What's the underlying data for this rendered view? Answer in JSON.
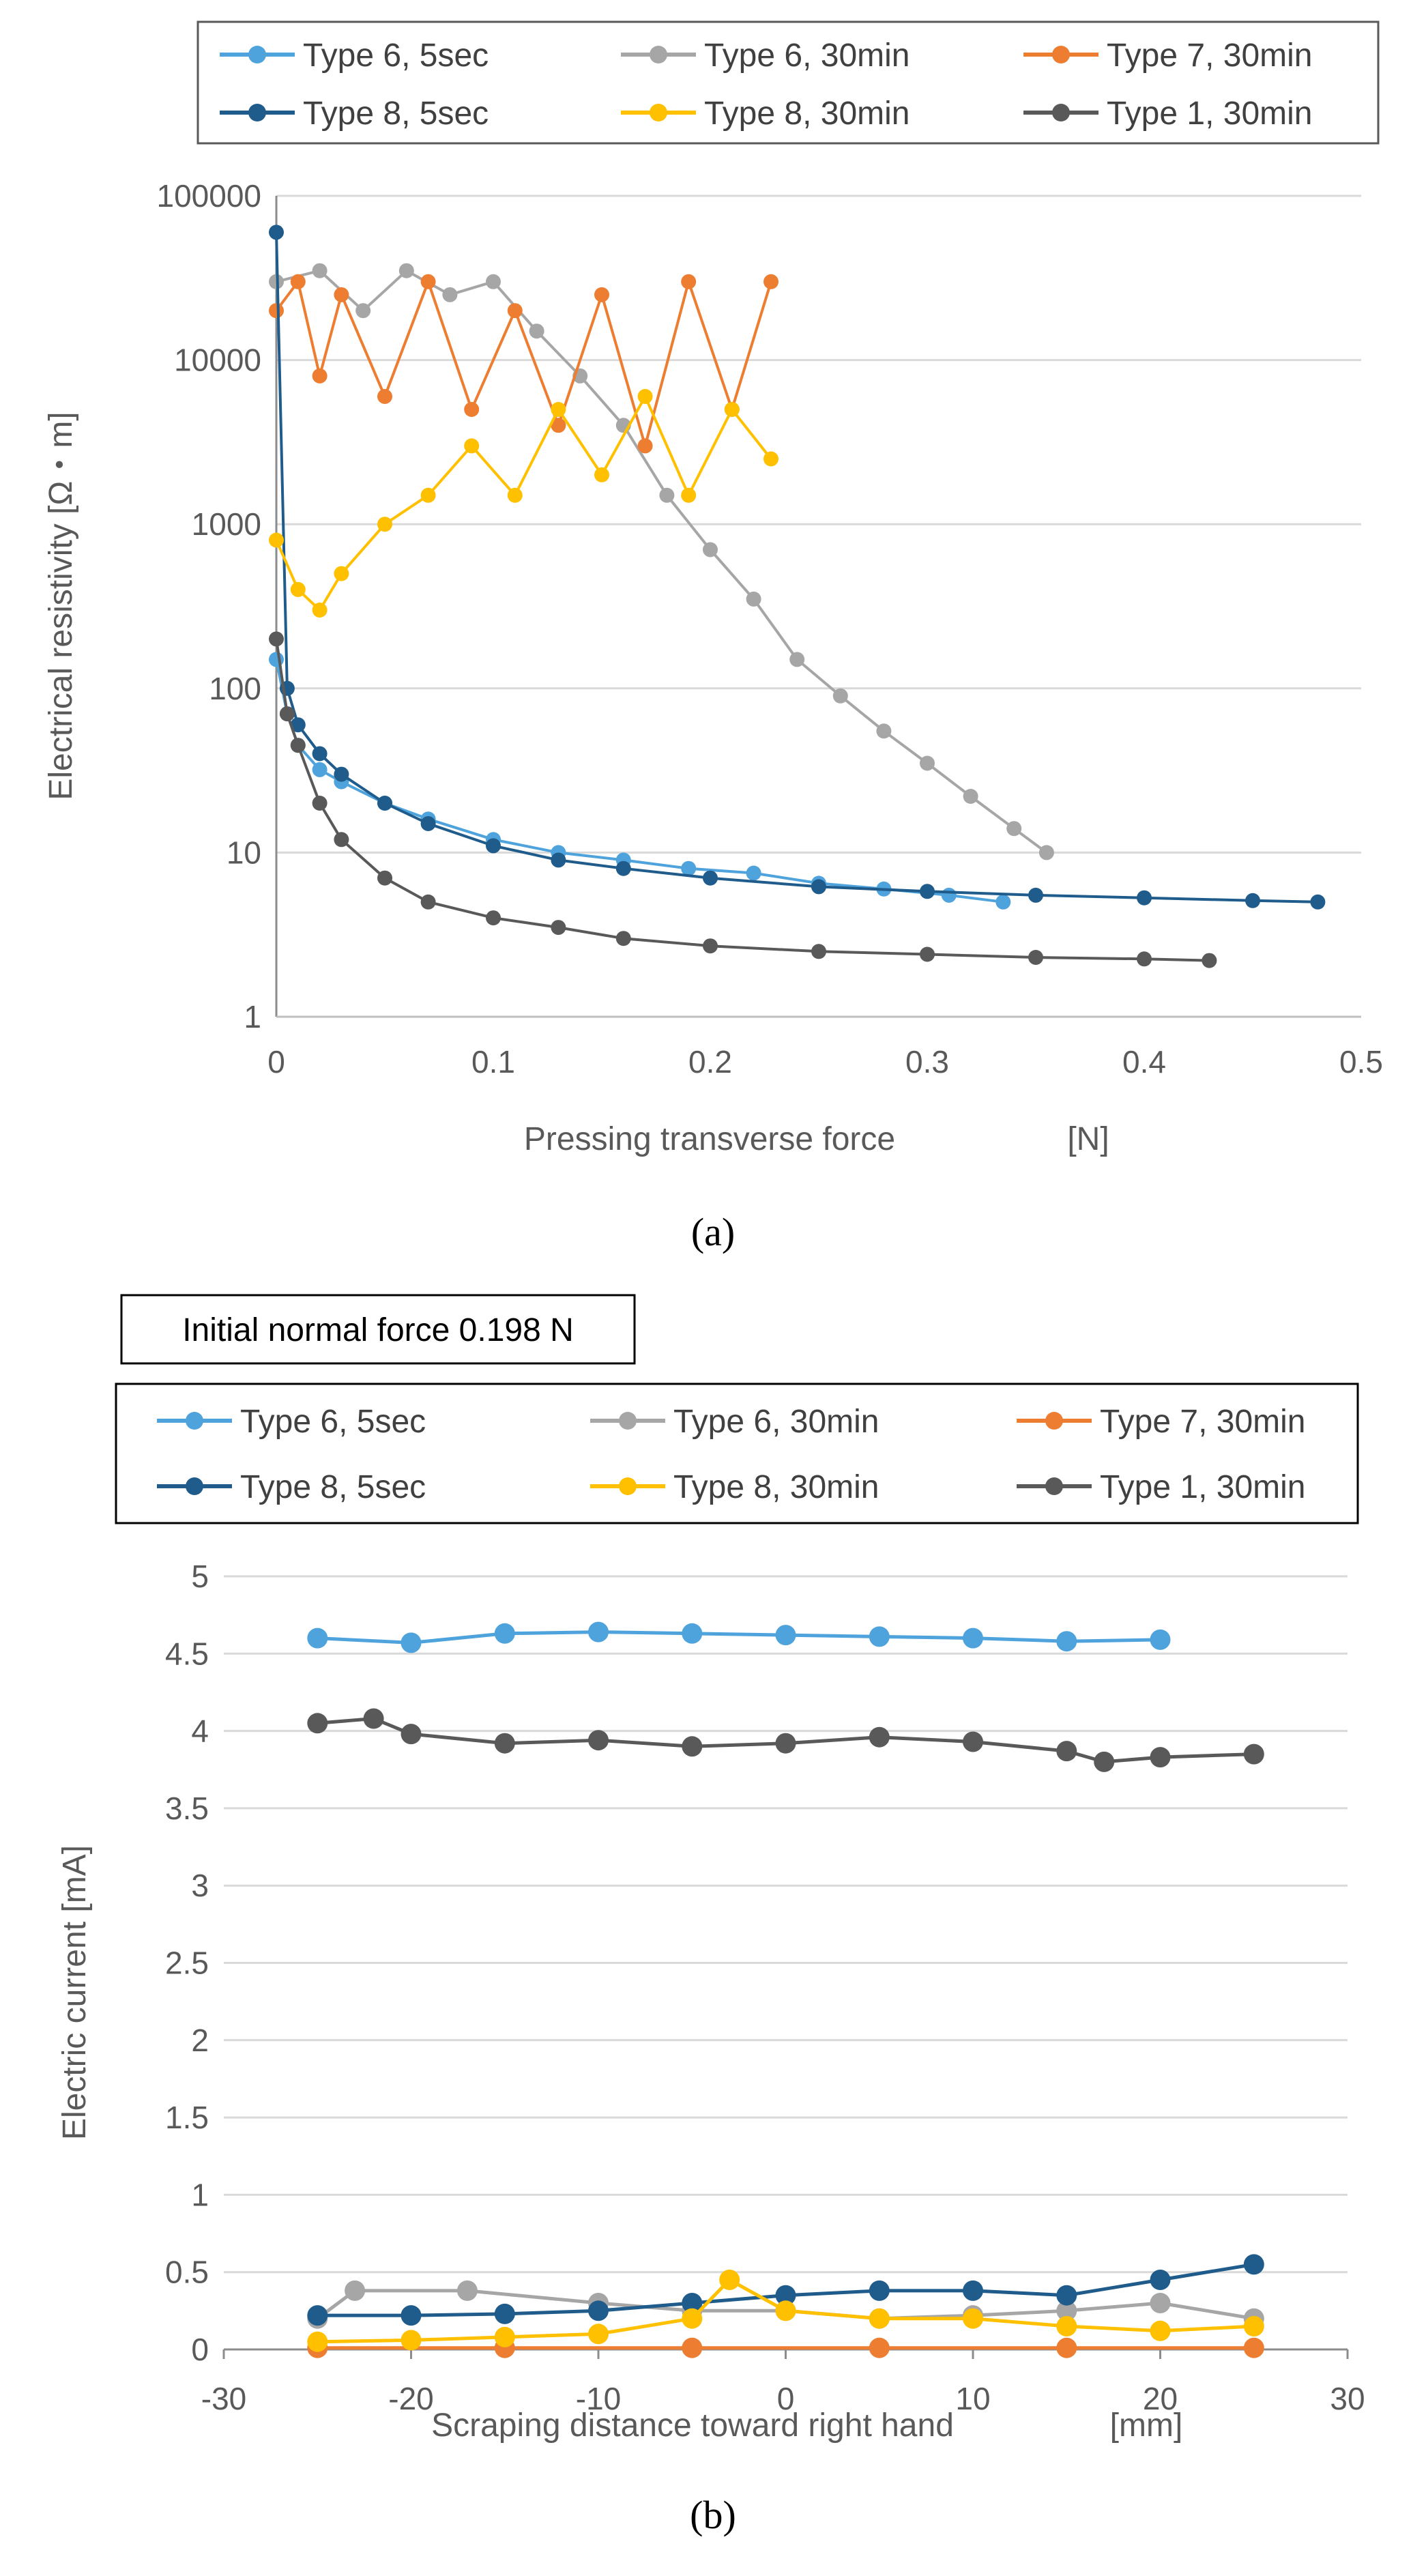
{
  "chart_data": [
    {
      "type": "scatter",
      "panel_label": "(a)",
      "xlabel": "Pressing transverse force",
      "xunit": "[N]",
      "ylabel": "Electrical resistivity  [Ω・m]",
      "xlim": [
        0,
        0.5
      ],
      "ylim": [
        1,
        100000
      ],
      "yscale": "log",
      "x_ticks": [
        "0",
        "0.1",
        "0.2",
        "0.3",
        "0.4",
        "0.5"
      ],
      "y_ticks": [
        "1",
        "10",
        "100",
        "1000",
        "10000",
        "100000"
      ],
      "grid": "horizontal",
      "legend_position": "top",
      "series": [
        {
          "name": "Type 6, 5sec",
          "color": "#4fa3dc",
          "x": [
            0,
            0.005,
            0.01,
            0.02,
            0.03,
            0.05,
            0.07,
            0.1,
            0.13,
            0.16,
            0.19,
            0.22,
            0.25,
            0.28,
            0.31,
            0.335
          ],
          "y": [
            150,
            70,
            45,
            32,
            27,
            20,
            16,
            12,
            10,
            9,
            8,
            7.5,
            6.5,
            6,
            5.5,
            5
          ]
        },
        {
          "name": "Type 6, 30min",
          "color": "#a6a6a6",
          "x": [
            0,
            0.02,
            0.04,
            0.06,
            0.08,
            0.1,
            0.12,
            0.14,
            0.16,
            0.18,
            0.2,
            0.22,
            0.24,
            0.26,
            0.28,
            0.3,
            0.32,
            0.34,
            0.355
          ],
          "y": [
            30000,
            35000,
            20000,
            35000,
            25000,
            30000,
            15000,
            8000,
            4000,
            1500,
            700,
            350,
            150,
            90,
            55,
            35,
            22,
            14,
            10
          ]
        },
        {
          "name": "Type 7, 30min",
          "color": "#ed7d31",
          "x": [
            0,
            0.01,
            0.02,
            0.03,
            0.05,
            0.07,
            0.09,
            0.11,
            0.13,
            0.15,
            0.17,
            0.19,
            0.21,
            0.228
          ],
          "y": [
            20000,
            30000,
            8000,
            25000,
            6000,
            30000,
            5000,
            20000,
            4000,
            25000,
            3000,
            30000,
            5000,
            30000
          ]
        },
        {
          "name": "Type 8, 5sec",
          "color": "#1f5c8c",
          "x": [
            0,
            0.005,
            0.01,
            0.02,
            0.03,
            0.05,
            0.07,
            0.1,
            0.13,
            0.16,
            0.2,
            0.25,
            0.3,
            0.35,
            0.4,
            0.45,
            0.48
          ],
          "y": [
            60000,
            100,
            60,
            40,
            30,
            20,
            15,
            11,
            9,
            8,
            7,
            6.2,
            5.8,
            5.5,
            5.3,
            5.1,
            5
          ]
        },
        {
          "name": "Type 8, 30min",
          "color": "#ffc000",
          "x": [
            0,
            0.01,
            0.02,
            0.03,
            0.05,
            0.07,
            0.09,
            0.11,
            0.13,
            0.15,
            0.17,
            0.19,
            0.21,
            0.228
          ],
          "y": [
            800,
            400,
            300,
            500,
            1000,
            1500,
            3000,
            1500,
            5000,
            2000,
            6000,
            1500,
            5000,
            2500
          ]
        },
        {
          "name": "Type 1, 30min",
          "color": "#595959",
          "x": [
            0,
            0.005,
            0.01,
            0.02,
            0.03,
            0.05,
            0.07,
            0.1,
            0.13,
            0.16,
            0.2,
            0.25,
            0.3,
            0.35,
            0.4,
            0.43
          ],
          "y": [
            200,
            70,
            45,
            20,
            12,
            7,
            5,
            4,
            3.5,
            3,
            2.7,
            2.5,
            2.4,
            2.3,
            2.25,
            2.2
          ]
        }
      ]
    },
    {
      "type": "scatter",
      "panel_label": "(b)",
      "note": "Initial normal force 0.198 N",
      "xlabel": "Scraping distance toward right hand",
      "xunit": "[mm]",
      "ylabel": "Electric current  [mA]",
      "xlim": [
        -30,
        30
      ],
      "ylim": [
        0,
        5
      ],
      "x_ticks": [
        "-30",
        "-20",
        "-10",
        "0",
        "10",
        "20",
        "30"
      ],
      "y_ticks": [
        "0",
        "0.5",
        "1",
        "1.5",
        "2",
        "2.5",
        "3",
        "3.5",
        "4",
        "4.5",
        "5"
      ],
      "grid": "horizontal",
      "legend_position": "top",
      "series": [
        {
          "name": "Type 6, 5sec",
          "color": "#4fa3dc",
          "x": [
            -25,
            -20,
            -15,
            -10,
            -5,
            0,
            5,
            10,
            15,
            20
          ],
          "y": [
            4.6,
            4.57,
            4.63,
            4.64,
            4.63,
            4.62,
            4.61,
            4.6,
            4.58,
            4.59
          ]
        },
        {
          "name": "Type 6, 30min",
          "color": "#a6a6a6",
          "x": [
            -25,
            -23,
            -17,
            -10,
            -5,
            0,
            5,
            10,
            15,
            20,
            25
          ],
          "y": [
            0.2,
            0.38,
            0.38,
            0.3,
            0.25,
            0.25,
            0.2,
            0.22,
            0.25,
            0.3,
            0.2
          ]
        },
        {
          "name": "Type 7, 30min",
          "color": "#ed7d31",
          "x": [
            -25,
            -15,
            -5,
            5,
            15,
            25
          ],
          "y": [
            0.01,
            0.01,
            0.01,
            0.01,
            0.01,
            0.01
          ]
        },
        {
          "name": "Type 8, 5sec",
          "color": "#1f5c8c",
          "x": [
            -25,
            -20,
            -15,
            -10,
            -5,
            0,
            5,
            10,
            15,
            20,
            25
          ],
          "y": [
            0.22,
            0.22,
            0.23,
            0.25,
            0.3,
            0.35,
            0.38,
            0.38,
            0.35,
            0.45,
            0.55
          ]
        },
        {
          "name": "Type 8, 30min",
          "color": "#ffc000",
          "x": [
            -25,
            -20,
            -15,
            -10,
            -5,
            -3,
            0,
            5,
            10,
            15,
            20,
            25
          ],
          "y": [
            0.05,
            0.06,
            0.08,
            0.1,
            0.2,
            0.45,
            0.25,
            0.2,
            0.2,
            0.15,
            0.12,
            0.15
          ]
        },
        {
          "name": "Type 1, 30min",
          "color": "#595959",
          "x": [
            -25,
            -22,
            -20,
            -15,
            -10,
            -5,
            0,
            5,
            10,
            15,
            17,
            20,
            25
          ],
          "y": [
            4.05,
            4.08,
            3.98,
            3.92,
            3.94,
            3.9,
            3.92,
            3.96,
            3.93,
            3.87,
            3.8,
            3.83,
            3.85
          ]
        }
      ]
    }
  ]
}
